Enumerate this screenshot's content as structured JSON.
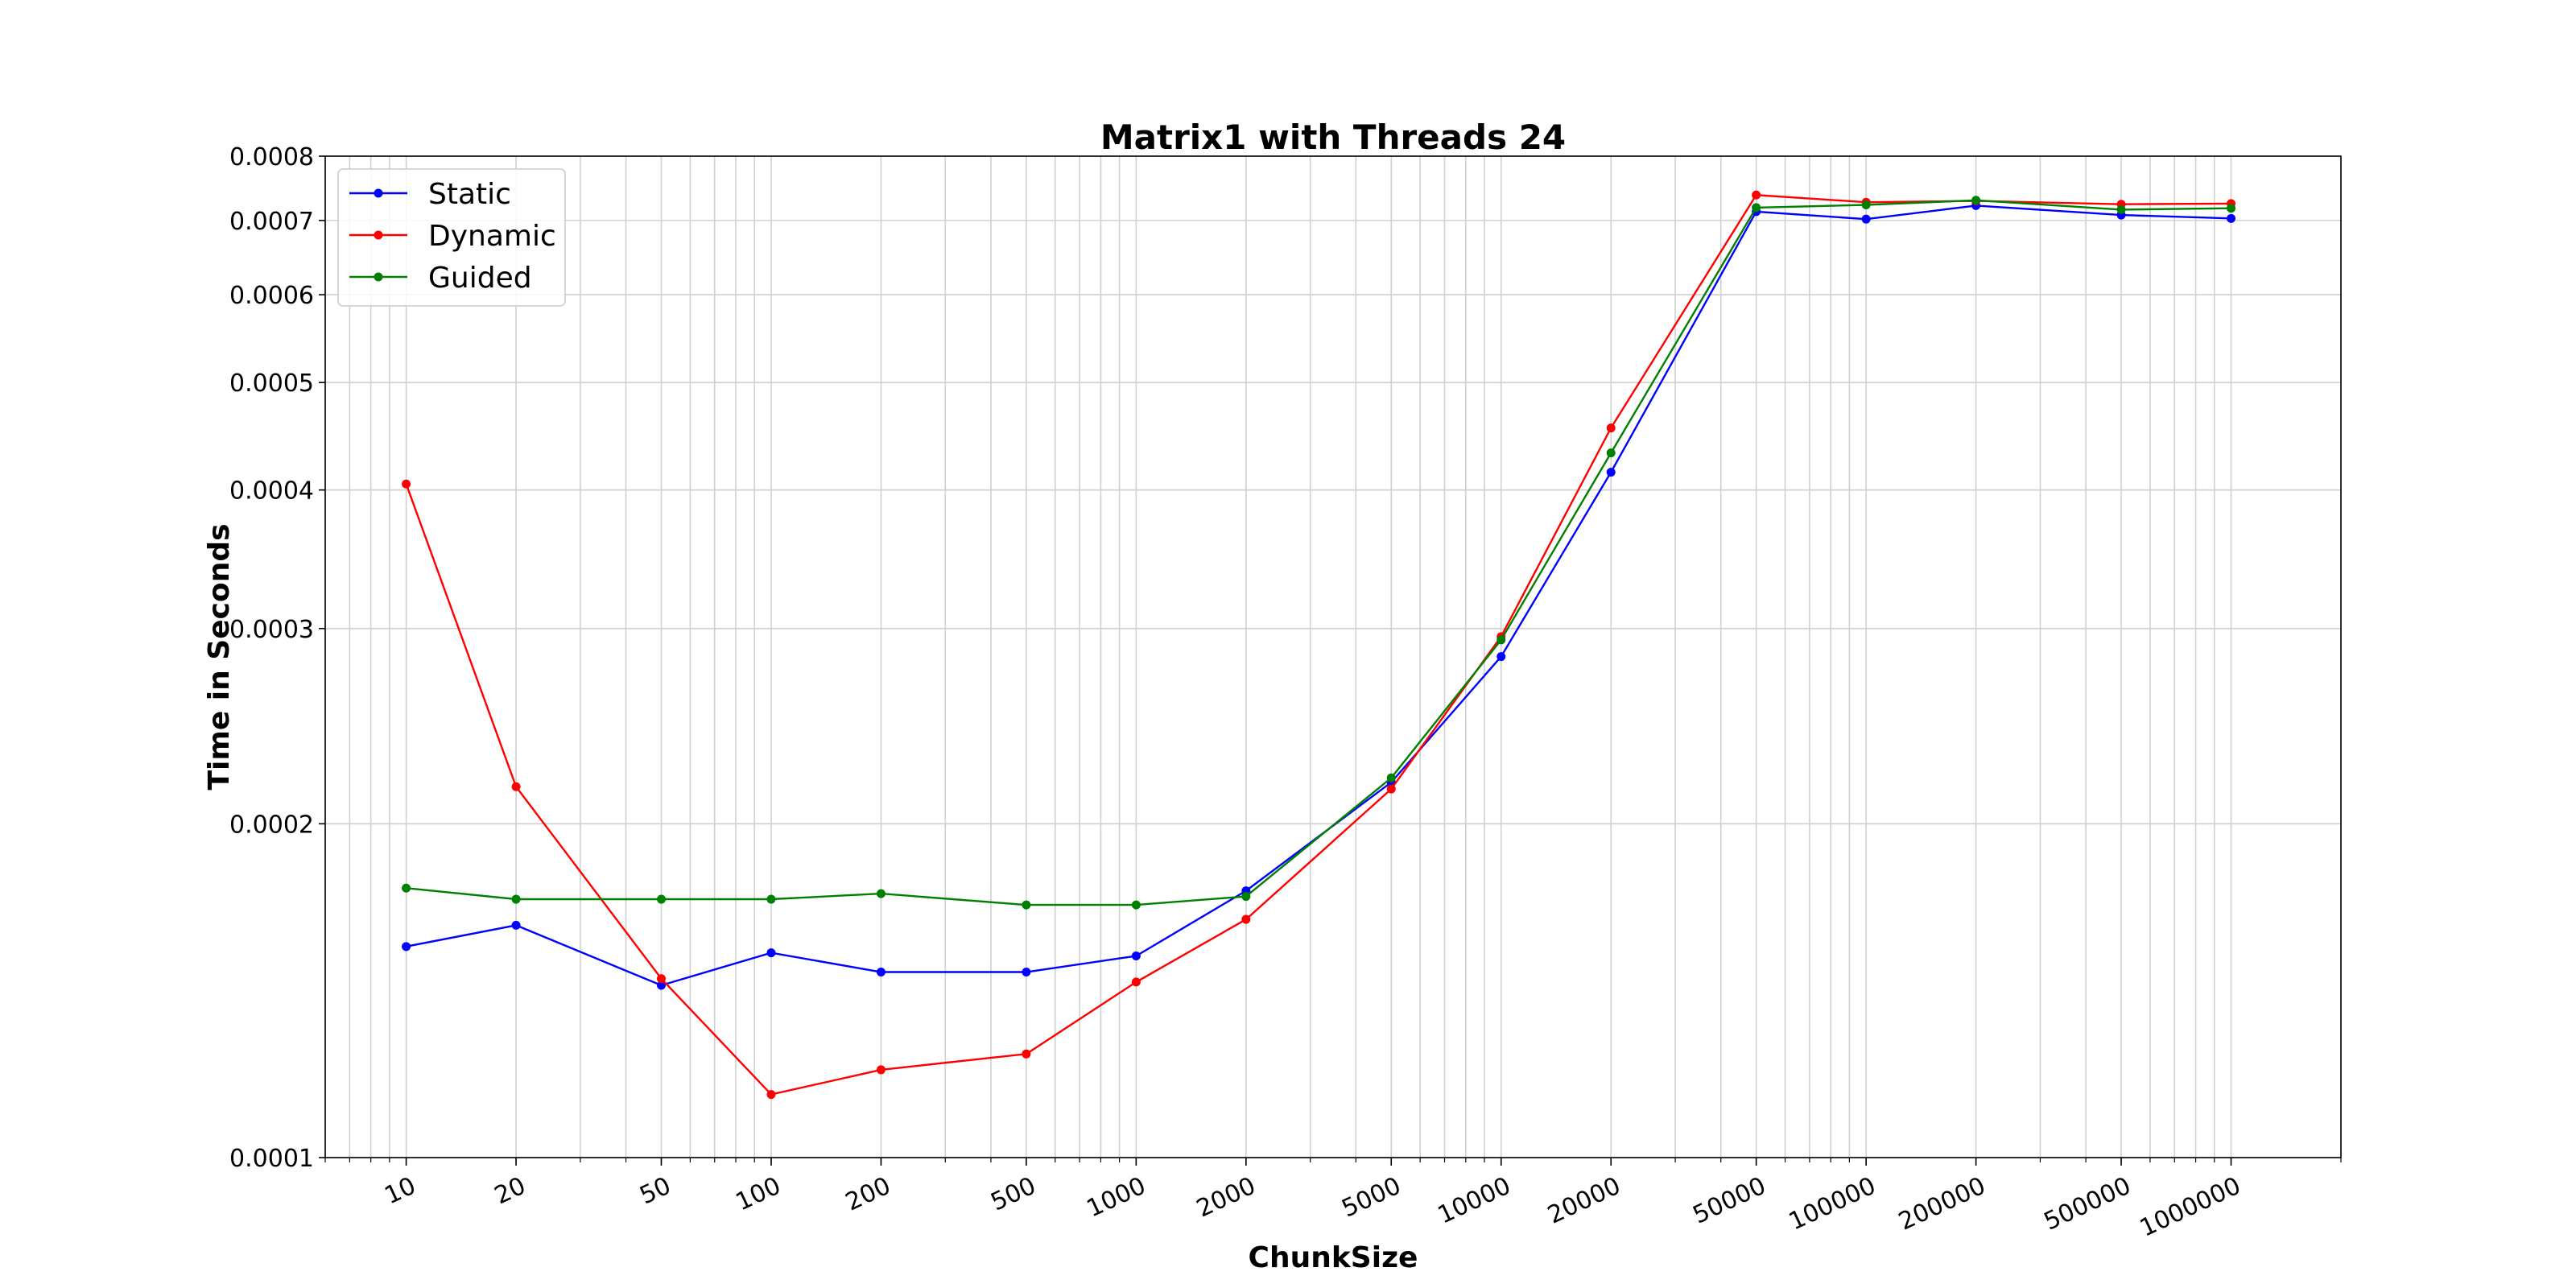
{
  "chart_data": {
    "type": "line",
    "title": "Matrix1 with Threads 24",
    "xlabel": "ChunkSize",
    "ylabel": "Time in Seconds",
    "x_scale": "log",
    "y_scale": "log",
    "xlim": [
      6,
      2000000
    ],
    "ylim": [
      0.0001,
      0.0008
    ],
    "grid": true,
    "legend_position": "top-left",
    "x": [
      10,
      20,
      50,
      100,
      200,
      500,
      1000,
      2000,
      5000,
      10000,
      20000,
      50000,
      100000,
      200000,
      500000,
      1000000
    ],
    "x_tick_labels": [
      "10",
      "20",
      "50",
      "100",
      "200",
      "500",
      "1000",
      "2000",
      "5000",
      "10000",
      "20000",
      "50000",
      "100000",
      "200000",
      "500000",
      "1000000"
    ],
    "y_ticks": [
      0.0001,
      0.0002,
      0.0003,
      0.0004,
      0.0005,
      0.0006,
      0.0007,
      0.0008
    ],
    "y_tick_labels": [
      "0.0001",
      "0.0002",
      "0.0003",
      "0.0004",
      "0.0005",
      "0.0006",
      "0.0007",
      "0.0008"
    ],
    "series": [
      {
        "name": "Static",
        "color": "#0000ff",
        "values": [
          0.000155,
          0.000162,
          0.000143,
          0.000153,
          0.000147,
          0.000147,
          0.000152,
          0.000174,
          0.000218,
          0.000283,
          0.000415,
          0.000713,
          0.000702,
          0.000722,
          0.000708,
          0.000703
        ]
      },
      {
        "name": "Dynamic",
        "color": "#ff0000",
        "values": [
          0.000405,
          0.000216,
          0.000145,
          0.000114,
          0.00012,
          0.000124,
          0.000144,
          0.000164,
          0.000215,
          0.000295,
          0.000455,
          0.000738,
          0.000727,
          0.000729,
          0.000724,
          0.000725
        ]
      },
      {
        "name": "Guided",
        "color": "#008000",
        "values": [
          0.000175,
          0.000171,
          0.000171,
          0.000171,
          0.000173,
          0.000169,
          0.000169,
          0.000172,
          0.00022,
          0.000293,
          0.000432,
          0.000719,
          0.000723,
          0.00073,
          0.000716,
          0.000718
        ]
      }
    ]
  }
}
